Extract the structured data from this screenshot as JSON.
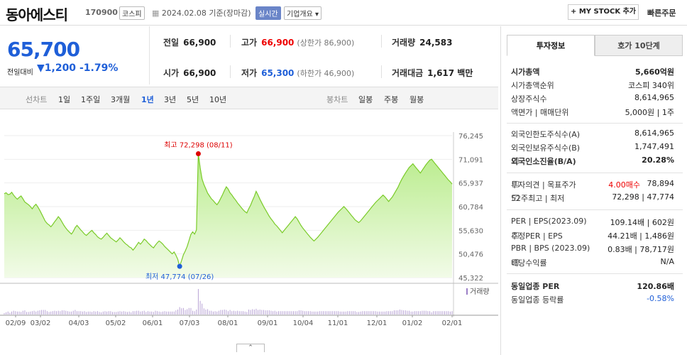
{
  "header": {
    "name": "동아에스티",
    "code": "170900",
    "market_tag": "코스피",
    "date": "2024.02.08 기준(장마감)",
    "realtime_tag": "실시간",
    "overview_tag": "기업개요",
    "mystock_btn": "+ MY STOCK 추가",
    "quick_order": "빠른주문"
  },
  "price": {
    "current": "65,700",
    "label": "전일대비",
    "change": "▼1,200",
    "change_pct": "-1.79%"
  },
  "info": {
    "prev_label": "전일",
    "prev": "66,900",
    "high_label": "고가",
    "high": "66,900",
    "upper_limit": "(상한가 86,900)",
    "volume_label": "거래량",
    "volume": "24,583",
    "open_label": "시가",
    "open": "66,900",
    "low_label": "저가",
    "low": "65,300",
    "lower_limit": "(하한가 46,900)",
    "amount_label": "거래대금",
    "amount": "1,617 백만"
  },
  "period": {
    "line_label": "선차트",
    "items": [
      "1일",
      "1주일",
      "3개월",
      "1년",
      "3년",
      "5년",
      "10년"
    ],
    "active": "1년",
    "candle_label": "봉차트",
    "candle_items": [
      "일봉",
      "주봉",
      "월봉"
    ]
  },
  "chart_data": {
    "type": "area",
    "y_ticks": [
      "76,245",
      "71,091",
      "65,937",
      "60,784",
      "55,630",
      "50,476",
      "45,322"
    ],
    "ylim": [
      45322,
      76245
    ],
    "x_ticks": [
      "02/09",
      "03/02",
      "04/03",
      "05/02",
      "06/01",
      "07/03",
      "08/01",
      "09/01",
      "10/04",
      "11/01",
      "12/01",
      "01/02",
      "02/01"
    ],
    "high_label": "최고 72,298 (08/11)",
    "low_label": "최저 47,774 (07/26)",
    "volume_label": "거래량",
    "high_value": 72298,
    "low_value": 47774,
    "high_index": 104,
    "low_index": 94,
    "values": [
      63600,
      63800,
      63400,
      63500,
      63900,
      63300,
      62800,
      62400,
      62800,
      63100,
      62500,
      61800,
      61500,
      61200,
      60800,
      60300,
      60900,
      61300,
      60700,
      60000,
      59200,
      58400,
      57600,
      57100,
      56800,
      56400,
      56900,
      57500,
      58000,
      58600,
      58100,
      57400,
      56700,
      56100,
      55600,
      55200,
      54800,
      55400,
      56200,
      56700,
      56200,
      55700,
      55300,
      54800,
      54500,
      54900,
      55300,
      55600,
      55100,
      54700,
      54200,
      53900,
      53700,
      54100,
      54600,
      55000,
      54500,
      54000,
      53700,
      53400,
      53100,
      53500,
      54000,
      53600,
      53100,
      52700,
      52400,
      52000,
      51800,
      51300,
      51800,
      52400,
      53000,
      52600,
      53100,
      53700,
      53400,
      52900,
      52500,
      52100,
      51800,
      52400,
      52900,
      53300,
      53000,
      52600,
      52100,
      51700,
      51300,
      50900,
      50500,
      50900,
      50200,
      49300,
      47774,
      49000,
      50300,
      51100,
      52100,
      53400,
      54700,
      55300,
      54800,
      55700,
      72298,
      69200,
      66800,
      65600,
      64700,
      63700,
      63100,
      62500,
      62100,
      61600,
      61200,
      61800,
      62600,
      63400,
      64300,
      65100,
      64600,
      63800,
      63300,
      62700,
      62200,
      61600,
      61100,
      60600,
      60100,
      59700,
      59400,
      60300,
      61100,
      62100,
      63000,
      64100,
      63300,
      62400,
      61600,
      60800,
      60100,
      59400,
      58700,
      58100,
      57600,
      57000,
      56600,
      56100,
      55600,
      55100,
      55600,
      56100,
      56600,
      57100,
      57600,
      58100,
      58600,
      58100,
      57400,
      56700,
      56100,
      55600,
      55100,
      54600,
      54100,
      53700,
      53300,
      53700,
      54100,
      54600,
      55100,
      55600,
      56100,
      56600,
      57100,
      57600,
      58100,
      58600,
      59100,
      59600,
      60000,
      60400,
      60800,
      60400,
      59900,
      59400,
      58900,
      58400,
      57900,
      57600,
      57300,
      57700,
      58200,
      58700,
      59200,
      59700,
      60200,
      60700,
      61200,
      61700,
      62100,
      62500,
      62900,
      63300,
      62900,
      62400,
      61900,
      62400,
      62900,
      63600,
      64300,
      65000,
      65900,
      66700,
      67400,
      68100,
      68700,
      69300,
      69700,
      70100,
      69600,
      69100,
      68600,
      68100,
      68700,
      69300,
      69900,
      70400,
      70900,
      71100,
      70600,
      70100,
      69600,
      69100,
      68600,
      68100,
      67600,
      67100,
      66600,
      66200,
      65700
    ]
  },
  "right_panel": {
    "tab_invest": "투자정보",
    "tab_hoga": "호가 10단계",
    "rows1": [
      {
        "k": "시가총액",
        "v": "5,660억원",
        "bold": true
      },
      {
        "k": "시가총액순위",
        "v": "코스피 340위"
      },
      {
        "k": "상장주식수",
        "v": "8,614,965"
      },
      {
        "k": "액면가 | 매매단위",
        "v": "5,000원 | 1주"
      }
    ],
    "rows2": [
      {
        "k": "외국인한도주식수(A)",
        "v": "8,614,965"
      },
      {
        "k": "외국인보유주식수(B)",
        "v": "1,747,491"
      },
      {
        "k": "외국인소진율(B/A)",
        "v": "20.28%",
        "bold": true
      }
    ],
    "rows3": [
      {
        "k": "투자의견 | 목표주가",
        "v1": "4.00매수",
        "v": "78,894"
      },
      {
        "k": "52주최고 | 최저",
        "v": "72,298 | 47,774"
      }
    ],
    "rows4": [
      {
        "k": "PER | EPS(2023.09)",
        "v": "109.14배 | 602원"
      },
      {
        "k": "추정PER | EPS",
        "v": "44.21배 | 1,486원"
      },
      {
        "k": "PBR | BPS (2023.09)",
        "v": "0.83배 | 78,717원"
      },
      {
        "k": "배당수익률",
        "v": "N/A"
      }
    ],
    "rows5": [
      {
        "k": "동일업종 PER",
        "v": "120.86배",
        "bold": true
      },
      {
        "k": "동일업종 등락률",
        "v": "-0.58%"
      }
    ]
  },
  "colors": {
    "blue": "#1f5fd8",
    "red": "#e00000",
    "line": "#7acb29",
    "fill_top": "#b9ec8c",
    "fill_bottom": "#f2fbe8"
  }
}
